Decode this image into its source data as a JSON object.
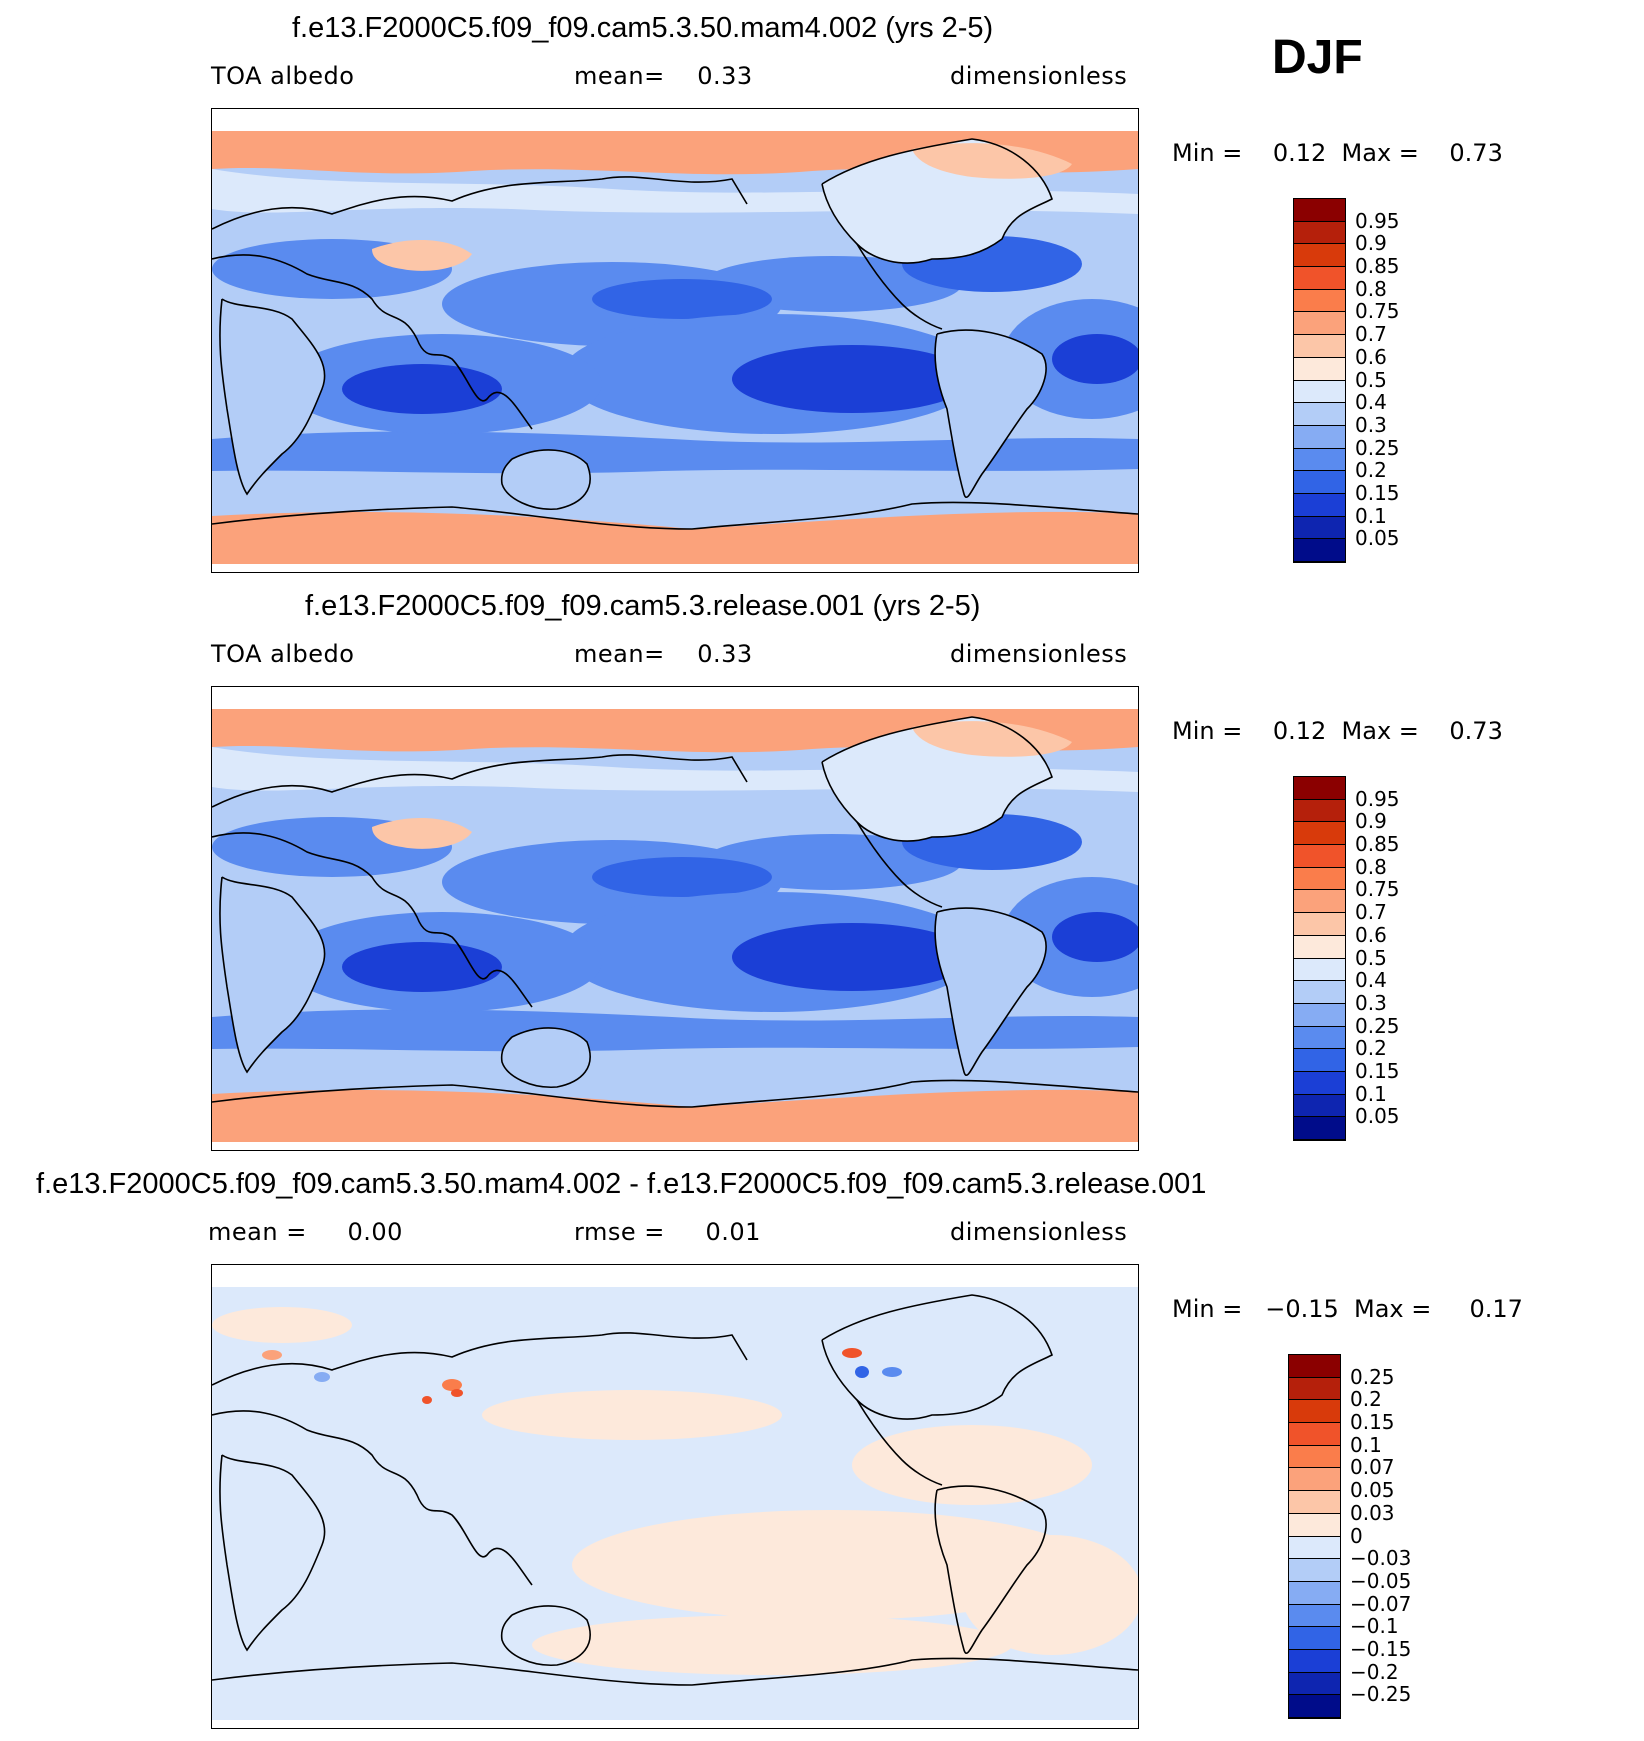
{
  "season": "DJF",
  "panels": [
    {
      "title": "f.e13.F2000C5.f09_f09.cam5.3.50.mam4.002 (yrs 2-5)",
      "left_label": "TOA albedo",
      "mid_label": "mean=    0.33",
      "right_label": "dimensionless",
      "minmax": "Min =    0.12  Max =    0.73",
      "colorbar": {
        "labels": [
          "0.95",
          "0.9",
          "0.85",
          "0.8",
          "0.75",
          "0.7",
          "0.6",
          "0.5",
          "0.4",
          "0.3",
          "0.25",
          "0.2",
          "0.15",
          "0.1",
          "0.05"
        ],
        "colors": [
          "#8b0000",
          "#b5200b",
          "#d83a0b",
          "#f0532a",
          "#fa7d4b",
          "#fba27b",
          "#fcc6a8",
          "#fde9db",
          "#dce9fb",
          "#b3cdf7",
          "#86acf3",
          "#5a8bef",
          "#3164e6",
          "#1b3fd6",
          "#0e25b0",
          "#000c8a"
        ]
      },
      "map_colors": {
        "polar": "#fba27b",
        "pole_warm": "#fcc6a8",
        "mid": "#b3cdf7",
        "light": "#dce9fb",
        "ocean": "#5a8bef",
        "deep": "#3164e6",
        "deeper": "#1b3fd6",
        "land": "#b3cdf7"
      }
    },
    {
      "title": "f.e13.F2000C5.f09_f09.cam5.3.release.001 (yrs 2-5)",
      "left_label": "TOA albedo",
      "mid_label": "mean=    0.33",
      "right_label": "dimensionless",
      "minmax": "Min =    0.12  Max =    0.73",
      "colorbar": {
        "labels": [
          "0.95",
          "0.9",
          "0.85",
          "0.8",
          "0.75",
          "0.7",
          "0.6",
          "0.5",
          "0.4",
          "0.3",
          "0.25",
          "0.2",
          "0.15",
          "0.1",
          "0.05"
        ],
        "colors": [
          "#8b0000",
          "#b5200b",
          "#d83a0b",
          "#f0532a",
          "#fa7d4b",
          "#fba27b",
          "#fcc6a8",
          "#fde9db",
          "#dce9fb",
          "#b3cdf7",
          "#86acf3",
          "#5a8bef",
          "#3164e6",
          "#1b3fd6",
          "#0e25b0",
          "#000c8a"
        ]
      },
      "map_colors": {
        "polar": "#fba27b",
        "pole_warm": "#fcc6a8",
        "mid": "#b3cdf7",
        "light": "#dce9fb",
        "ocean": "#5a8bef",
        "deep": "#3164e6",
        "deeper": "#1b3fd6",
        "land": "#b3cdf7"
      }
    },
    {
      "title": "f.e13.F2000C5.f09_f09.cam5.3.50.mam4.002 - f.e13.F2000C5.f09_f09.cam5.3.release.001",
      "left_label": "mean =     0.00",
      "mid_label": "rmse =     0.01",
      "right_label": "dimensionless",
      "minmax": "Min =   −0.15  Max =     0.17",
      "colorbar": {
        "labels": [
          "0.25",
          "0.2",
          "0.15",
          "0.1",
          "0.07",
          "0.05",
          "0.03",
          "0",
          "−0.03",
          "−0.05",
          "−0.07",
          "−0.1",
          "−0.15",
          "−0.2",
          "−0.25"
        ],
        "colors": [
          "#8b0000",
          "#b5200b",
          "#d83a0b",
          "#f0532a",
          "#fa7d4b",
          "#fba27b",
          "#fcc6a8",
          "#fde9db",
          "#dce9fb",
          "#b3cdf7",
          "#86acf3",
          "#5a8bef",
          "#3164e6",
          "#1b3fd6",
          "#0e25b0",
          "#000c8a"
        ]
      },
      "map_colors": {
        "polar": "#fde9db",
        "pole_warm": "#fde9db",
        "mid": "#dce9fb",
        "light": "#fde9db",
        "ocean": "#dce9fb",
        "deep": "#fde9db",
        "deeper": "#dce9fb",
        "land": "#dce9fb"
      }
    }
  ]
}
